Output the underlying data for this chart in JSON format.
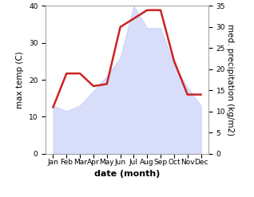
{
  "months": [
    "Jan",
    "Feb",
    "Mar",
    "Apr",
    "May",
    "Jun",
    "Jul",
    "Aug",
    "Sep",
    "Oct",
    "Nov",
    "Dec"
  ],
  "max_temp": [
    13,
    11.5,
    13,
    17,
    21,
    26,
    40,
    34,
    34,
    24,
    18,
    13
  ],
  "precipitation": [
    11,
    19,
    19,
    16,
    16.5,
    30,
    32,
    34,
    34,
    22,
    14,
    14
  ],
  "temp_ylim": [
    0,
    40
  ],
  "precip_ylim": [
    0,
    35
  ],
  "fill_color": "#c8d0f8",
  "fill_alpha": 0.7,
  "precip_line_color": "#cc2222",
  "precip_linewidth": 1.8,
  "xlabel": "date (month)",
  "ylabel_left": "max temp (C)",
  "ylabel_right": "med. precipitation (kg/m2)",
  "left_yticks": [
    0,
    10,
    20,
    30,
    40
  ],
  "right_yticks": [
    0,
    5,
    10,
    15,
    20,
    25,
    30,
    35
  ],
  "label_fontsize": 7.5,
  "tick_fontsize": 6.5,
  "xlabel_fontsize": 8,
  "xlabel_fontweight": "bold"
}
